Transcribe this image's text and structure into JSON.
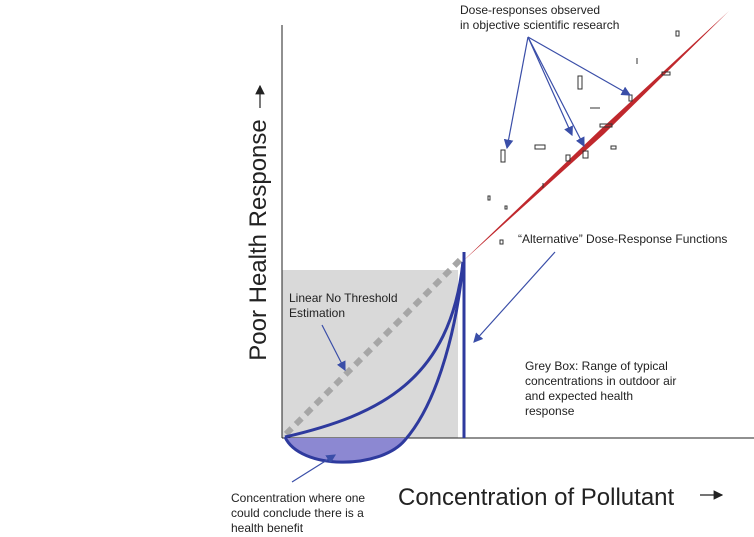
{
  "y_axis": {
    "label": "Poor Health Response"
  },
  "x_axis": {
    "label": "Concentration of Pollutant"
  },
  "annotations": {
    "observed": [
      "Dose-responses observed",
      "in objective scientific research"
    ],
    "alternative": [
      "“Alternative” Dose-Response Functions"
    ],
    "lnt": [
      "Linear No Threshold",
      "Estimation"
    ],
    "grey_box": [
      "Grey Box: Range of typical",
      "concentrations in outdoor air",
      "and expected health",
      "response"
    ],
    "benefit": [
      "Concentration where one",
      "could conclude there is a",
      "health benefit"
    ]
  }
}
